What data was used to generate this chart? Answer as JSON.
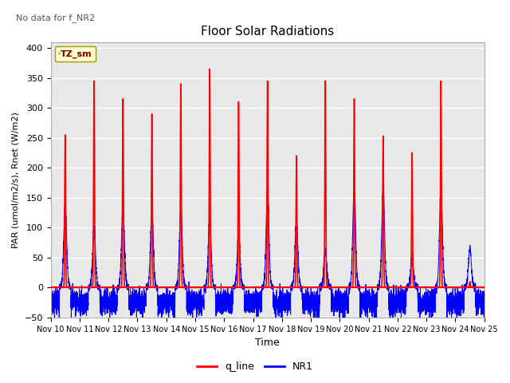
{
  "title": "Floor Solar Radiations",
  "xlabel": "Time",
  "ylabel": "PAR (umol/m2/s), Rnet (W/m2)",
  "top_left_text": "No data for f_NR2",
  "legend_label": "TZ_sm",
  "ylim": [
    -50,
    410
  ],
  "xlim": [
    0,
    15
  ],
  "x_tick_labels": [
    "Nov 10",
    "Nov 11",
    "Nov 12",
    "Nov 13",
    "Nov 14",
    "Nov 15",
    "Nov 16",
    "Nov 17",
    "Nov 18",
    "Nov 19",
    "Nov 20",
    "Nov 21",
    "Nov 22",
    "Nov 23",
    "Nov 24",
    "Nov 25"
  ],
  "yticks": [
    -50,
    0,
    50,
    100,
    150,
    200,
    250,
    300,
    350,
    400
  ],
  "bg_color": "#e8e8e8",
  "q_line_color": "red",
  "nr1_color": "blue",
  "q_line_label": "q_line",
  "nr1_label": "NR1",
  "q_peaks": [
    255,
    345,
    315,
    290,
    340,
    365,
    310,
    345,
    220,
    345,
    315,
    253,
    225,
    345,
    10
  ],
  "nr1_peaks": [
    140,
    100,
    135,
    130,
    130,
    115,
    90,
    165,
    110,
    60,
    165,
    165,
    50,
    165,
    65
  ]
}
